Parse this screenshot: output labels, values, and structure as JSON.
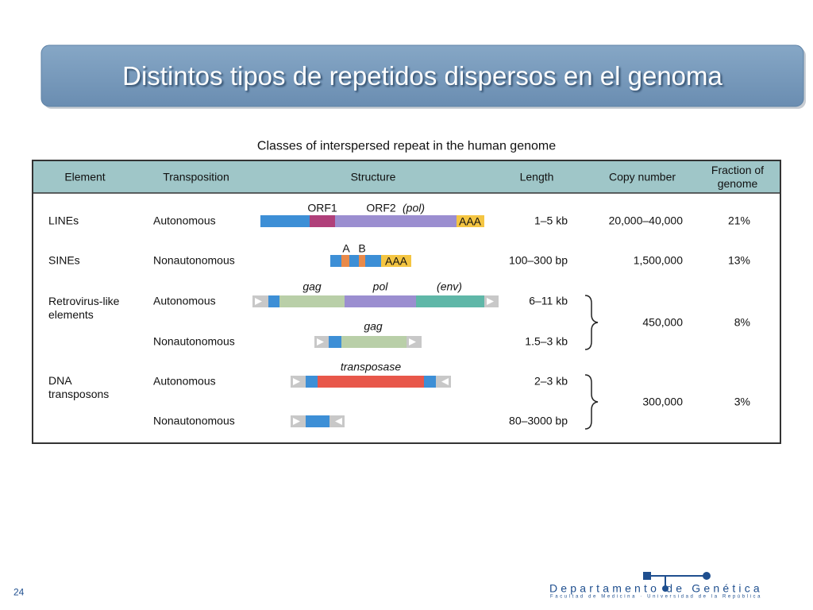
{
  "header": {
    "title": "Distintos tipos de repetidos dispersos en el genoma"
  },
  "figure": {
    "title": "Classes of interspersed repeat in the human genome",
    "table": {
      "headers": [
        "Element",
        "Transposition",
        "Structure",
        "Length",
        "Copy number",
        "Fraction of genome"
      ],
      "rows": [
        {
          "element": "LINEs",
          "transposition": "Autonomous",
          "structure_labels": [
            "ORF1",
            "ORF2",
            "(pol)",
            "AAA"
          ],
          "length": "1–5 kb",
          "copy_number": "20,000–40,000",
          "fraction": "21%"
        },
        {
          "element": "SINEs",
          "transposition": "Nonautonomous",
          "structure_labels": [
            "A",
            "B",
            "AAA"
          ],
          "length": "100–300 bp",
          "copy_number": "1,500,000",
          "fraction": "13%"
        },
        {
          "element": "Retrovirus-like elements",
          "transposition": "Autonomous",
          "structure_labels": [
            "gag",
            "pol",
            "(env)"
          ],
          "length": "6–11 kb",
          "copy_number": "450,000",
          "fraction": "8%"
        },
        {
          "transposition": "Nonautonomous",
          "structure_labels": [
            "gag"
          ],
          "length": "1.5–3 kb"
        },
        {
          "element": "DNA transposons",
          "transposition": "Autonomous",
          "structure_labels": [
            "transposase"
          ],
          "length": "2–3 kb",
          "copy_number": "300,000",
          "fraction": "3%"
        },
        {
          "transposition": "Nonautonomous",
          "length": "80–3000 bp"
        }
      ]
    }
  },
  "footer": {
    "page_number": "24",
    "logo": {
      "name": "Departamento de Genética",
      "subtitle": "Facultad de Medicina · Universidad de la República"
    }
  }
}
